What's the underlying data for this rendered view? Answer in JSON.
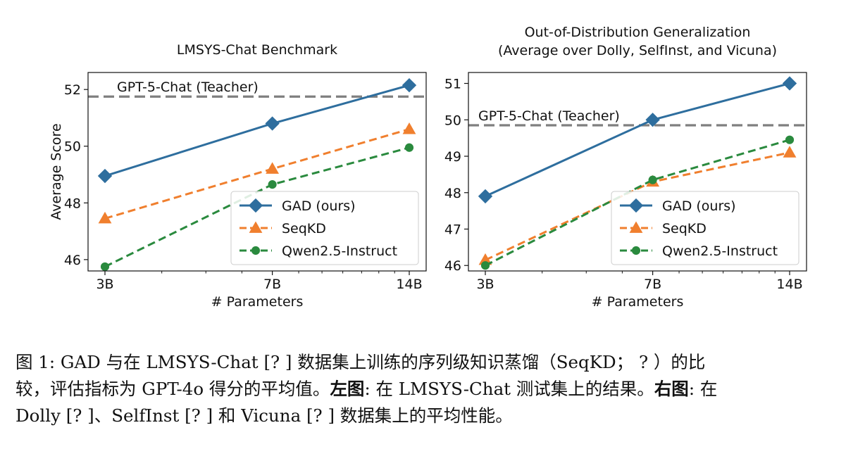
{
  "chart_data": [
    {
      "type": "line",
      "title": "LMSYS-Chat Benchmark",
      "xlabel": "# Parameters",
      "ylabel": "Average Score",
      "categories": [
        "3B",
        "7B",
        "14B"
      ],
      "x": [
        3,
        7,
        14
      ],
      "xscale": "log",
      "ylim": [
        45.6,
        52.6
      ],
      "yticks": [
        46,
        48,
        50,
        52
      ],
      "grid": false,
      "legend_position": "lower-right",
      "reference_line": {
        "label": "GPT-5-Chat (Teacher)",
        "value": 51.75,
        "color": "#7f7f7f"
      },
      "series": [
        {
          "name": "GAD (ours)",
          "values": [
            48.95,
            50.8,
            52.15
          ],
          "color": "#2e6e9e",
          "marker": "diamond",
          "style": "solid"
        },
        {
          "name": "SeqKD",
          "values": [
            47.45,
            49.2,
            50.6
          ],
          "color": "#f07f2e",
          "marker": "triangle",
          "style": "dashed"
        },
        {
          "name": "Qwen2.5-Instruct",
          "values": [
            45.75,
            48.65,
            49.95
          ],
          "color": "#2a8a3e",
          "marker": "circle",
          "style": "dashed"
        }
      ]
    },
    {
      "type": "line",
      "title": "Out-of-Distribution Generalization",
      "subtitle": "(Average over Dolly, SelfInst, and Vicuna)",
      "xlabel": "# Parameters",
      "ylabel": "",
      "categories": [
        "3B",
        "7B",
        "14B"
      ],
      "x": [
        3,
        7,
        14
      ],
      "xscale": "log",
      "ylim": [
        45.85,
        51.3
      ],
      "yticks": [
        46,
        47,
        48,
        49,
        50,
        51
      ],
      "grid": false,
      "legend_position": "lower-right",
      "reference_line": {
        "label": "GPT-5-Chat (Teacher)",
        "value": 49.85,
        "color": "#7f7f7f"
      },
      "series": [
        {
          "name": "GAD (ours)",
          "values": [
            47.9,
            50.0,
            51.0
          ],
          "color": "#2e6e9e",
          "marker": "diamond",
          "style": "solid"
        },
        {
          "name": "SeqKD",
          "values": [
            46.15,
            48.3,
            49.1
          ],
          "color": "#f07f2e",
          "marker": "triangle",
          "style": "dashed"
        },
        {
          "name": "Qwen2.5-Instruct",
          "values": [
            46.0,
            48.35,
            49.45
          ],
          "color": "#2a8a3e",
          "marker": "circle",
          "style": "dashed"
        }
      ]
    }
  ],
  "caption": {
    "line1": "图 1: GAD 与在 LMSYS-Chat [? ] 数据集上训练的序列级知识蒸馏（SeqKD； ? ）的比",
    "line2_pre": "较，评估指标为 GPT-4o 得分的平均值。",
    "left_label": "左图",
    "line2_mid": ": 在 LMSYS-Chat 测试集上的结果。",
    "right_label": "右图",
    "line2_post": ": 在",
    "line3": "Dolly [? ]、SelfInst [? ] 和 Vicuna [? ] 数据集上的平均性能。"
  }
}
